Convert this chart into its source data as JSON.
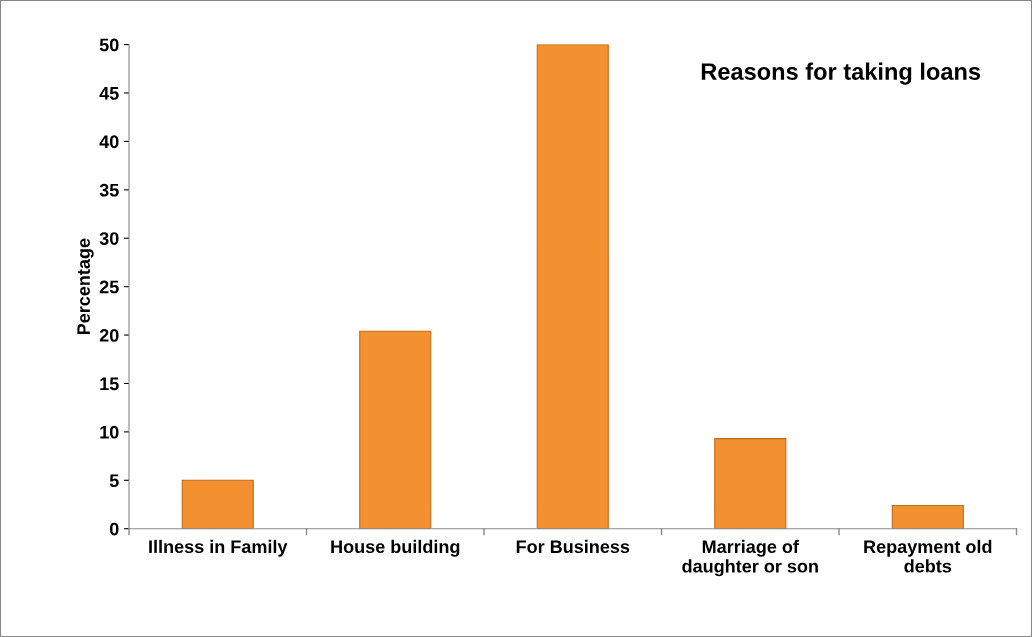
{
  "chart_data": {
    "type": "bar",
    "title": "Reasons for taking loans",
    "ylabel": "Percentage",
    "categories": [
      "Illness in Family",
      "House building",
      "For Business",
      "Marriage of\ndaughter or son",
      "Repayment old\ndebts"
    ],
    "values": [
      5,
      20.4,
      50,
      9.3,
      2.4
    ],
    "color": "#f39130",
    "ylim": [
      0,
      50
    ],
    "yticks": [
      0,
      5,
      10,
      15,
      20,
      25,
      30,
      35,
      40,
      45,
      50
    ],
    "grid": false
  }
}
